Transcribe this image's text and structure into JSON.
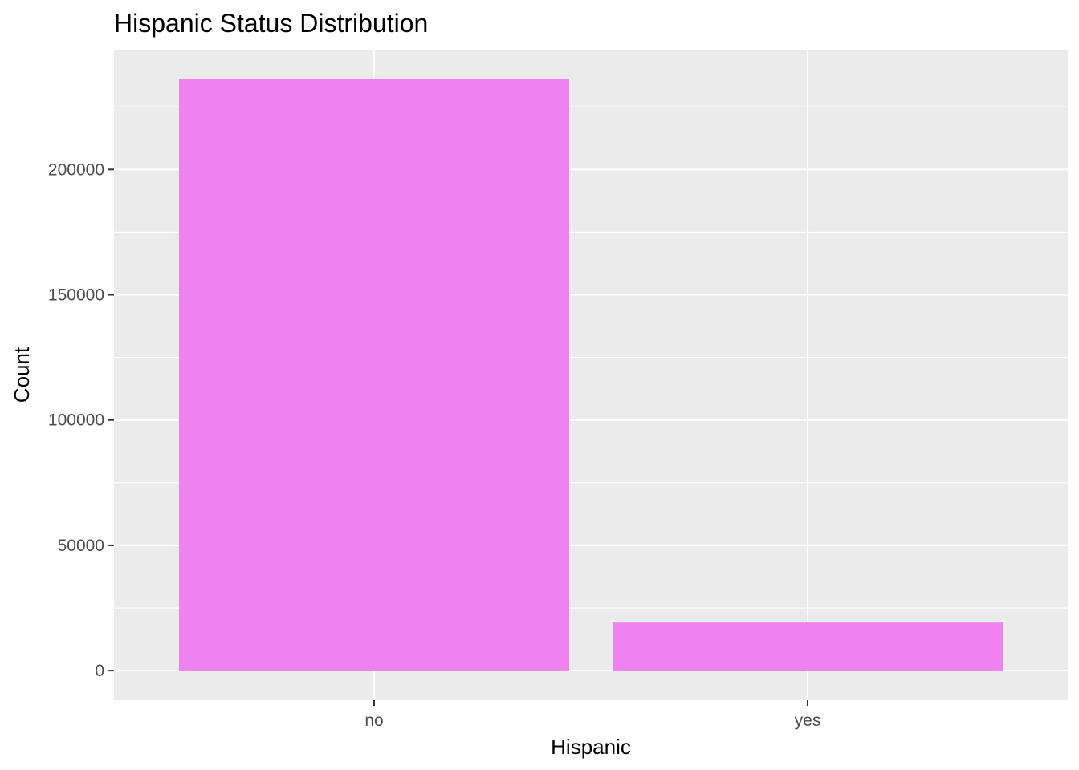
{
  "chart_data": {
    "type": "bar",
    "title": "Hispanic Status Distribution",
    "xlabel": "Hispanic",
    "ylabel": "Count",
    "categories": [
      "no",
      "yes"
    ],
    "values": [
      236000,
      19200
    ],
    "ylim": [
      -11800,
      247800
    ],
    "yticks": [
      0,
      50000,
      100000,
      150000,
      200000
    ],
    "ytick_labels": [
      "0",
      "50000",
      "100000",
      "150000",
      "200000"
    ],
    "grid": true,
    "legend": "none",
    "colors": {
      "bar": "#ee82ee",
      "panel_background": "#ebebeb",
      "grid_major": "#ffffff",
      "tick_label": "#4d4d4d",
      "text": "#000000"
    }
  }
}
